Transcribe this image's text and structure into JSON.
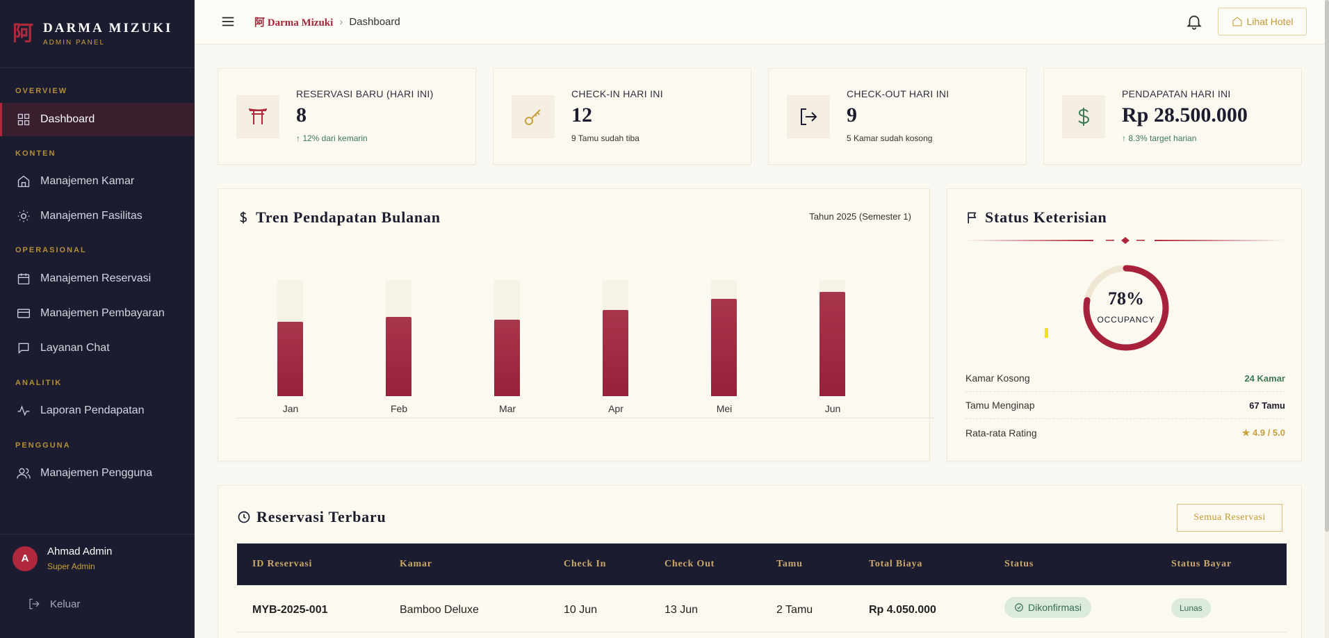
{
  "brand": {
    "logo_glyph": "阿",
    "name": "DARMA MIZUKI",
    "subtitle": "ADMIN PANEL",
    "accent": "#b0283c",
    "gold": "#c9a13a"
  },
  "sidebar": {
    "sections": [
      {
        "label": "OVERVIEW"
      },
      {
        "label": "KONTEN"
      },
      {
        "label": "OPERASIONAL"
      },
      {
        "label": "ANALITIK"
      },
      {
        "label": "PENGGUNA"
      }
    ],
    "items": [
      {
        "label": "Dashboard",
        "icon": "grid-icon",
        "active": true
      },
      {
        "label": "Manajemen Kamar",
        "icon": "home-icon"
      },
      {
        "label": "Manajemen Fasilitas",
        "icon": "sun-icon"
      },
      {
        "label": "Manajemen Reservasi",
        "icon": "calendar-icon"
      },
      {
        "label": "Manajemen Pembayaran",
        "icon": "card-icon"
      },
      {
        "label": "Layanan Chat",
        "icon": "chat-icon"
      },
      {
        "label": "Laporan Pendapatan",
        "icon": "activity-icon"
      },
      {
        "label": "Manajemen Pengguna",
        "icon": "users-icon"
      }
    ],
    "user": {
      "initial": "A",
      "name": "Ahmad Admin",
      "role": "Super Admin"
    },
    "logout_label": "Keluar"
  },
  "topbar": {
    "breadcrumb_home": "阿 Darma Mizuki",
    "breadcrumb_sep": "›",
    "breadcrumb_current": "Dashboard",
    "hotel_button": "Lihat Hotel"
  },
  "stats": [
    {
      "label": "RESERVASI BARU (HARI INI)",
      "value": "8",
      "sub": "↑ 12% dari kemarin",
      "icon": "torii-gate-icon",
      "trend": "up"
    },
    {
      "label": "CHECK-IN HARI INI",
      "value": "12",
      "sub": "9 Tamu sudah tiba",
      "icon": "key-icon",
      "trend": "none"
    },
    {
      "label": "CHECK-OUT HARI INI",
      "value": "9",
      "sub": "5 Kamar sudah kosong",
      "icon": "logout-icon",
      "trend": "none"
    },
    {
      "label": "PENDAPATAN HARI INI",
      "value": "Rp 28.500.000",
      "sub": "↑ 8.3% target harian",
      "icon": "dollar-icon",
      "trend": "up"
    }
  ],
  "revenue_chart": {
    "title": "Tren Pendapatan Bulanan",
    "subtitle": "Tahun 2025 (Semester 1)"
  },
  "chart_data": {
    "type": "bar",
    "categories": [
      "Jan",
      "Feb",
      "Mar",
      "Apr",
      "Mei",
      "Jun"
    ],
    "values": [
      64,
      68,
      66,
      74,
      84,
      90
    ],
    "ylim": [
      0,
      100
    ],
    "title": "Tren Pendapatan Bulanan",
    "xlabel": "",
    "ylabel": "",
    "grid": false,
    "color": "#a02a40"
  },
  "occupancy": {
    "title": "Status Keterisian",
    "percent_label": "78%",
    "percent": 78,
    "caption": "OCCUPANCY",
    "rows": [
      {
        "label": "Kamar Kosong",
        "value": "24 Kamar",
        "color": "#3b7a54"
      },
      {
        "label": "Tamu Menginap",
        "value": "67 Tamu",
        "color": "#1c1c2e"
      },
      {
        "label": "Rata-rata Rating",
        "value": "★ 4.9 / 5.0",
        "color": "#c9a13a"
      }
    ]
  },
  "reservations": {
    "title": "Reservasi Terbaru",
    "all_button": "Semua Reservasi",
    "columns": [
      "ID Reservasi",
      "Kamar",
      "Check In",
      "Check Out",
      "Tamu",
      "Total Biaya",
      "Status",
      "Status Bayar"
    ],
    "rows": [
      {
        "id": "MYB-2025-001",
        "room": "Bamboo Deluxe",
        "check_in": "10 Jun",
        "check_out": "13 Jun",
        "guests": "2 Tamu",
        "total": "Rp 4.050.000",
        "status": "Dikonfirmasi",
        "payment": "Lunas"
      }
    ]
  }
}
